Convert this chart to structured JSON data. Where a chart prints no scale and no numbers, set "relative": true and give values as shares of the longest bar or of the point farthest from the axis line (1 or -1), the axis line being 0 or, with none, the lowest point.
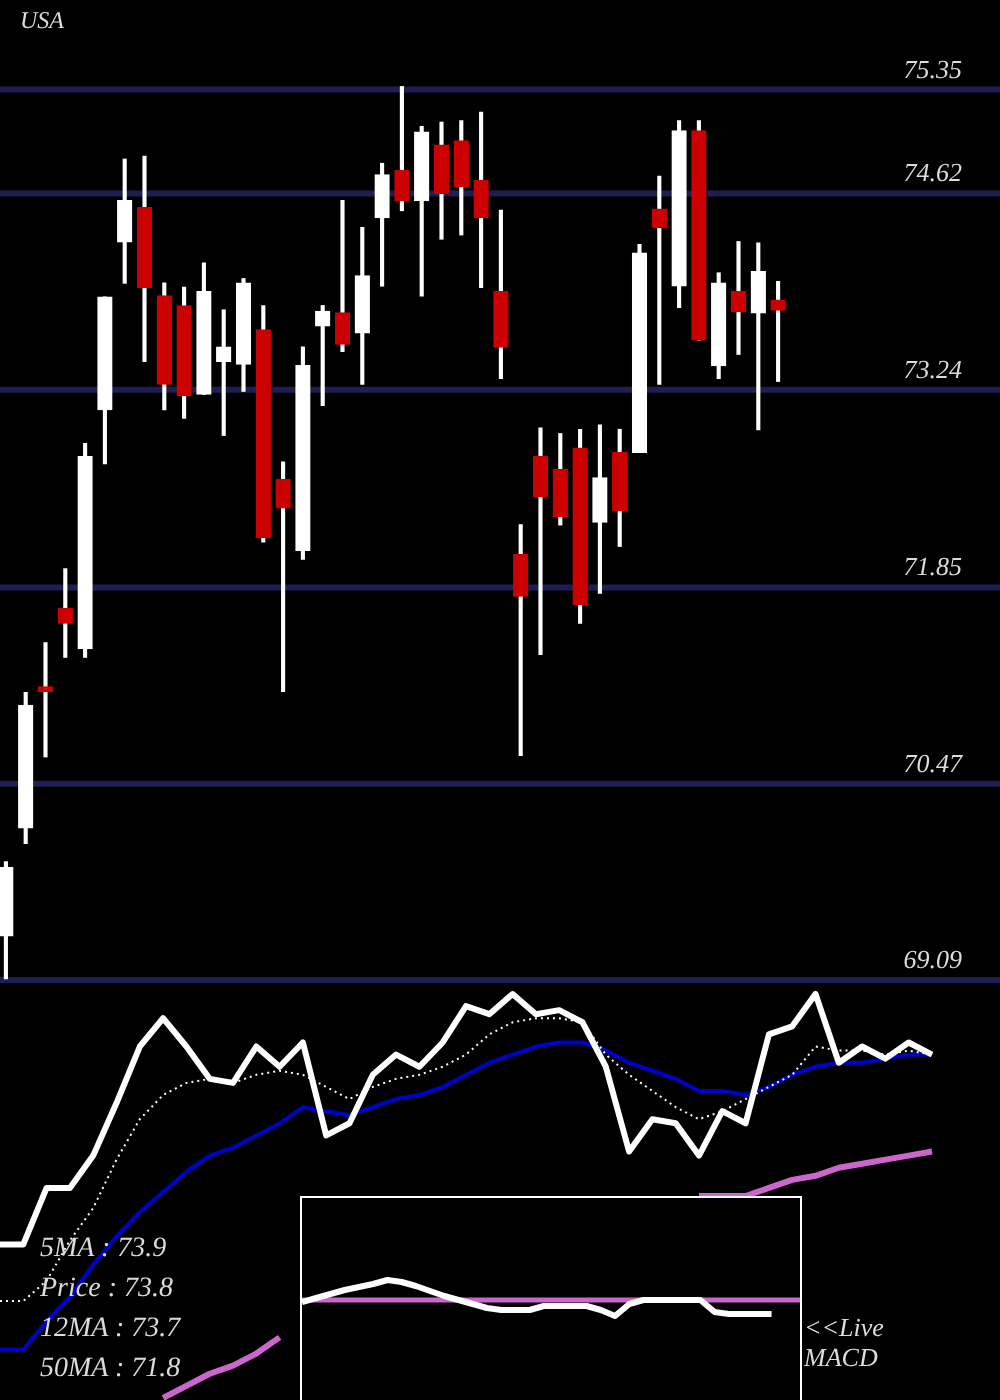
{
  "chart_data": [
    {
      "type": "candlestick",
      "title": "USA",
      "categories": [
        null,
        null,
        null,
        null,
        null,
        null,
        null,
        null,
        null,
        null,
        null,
        null,
        null,
        null,
        null,
        null,
        null,
        null,
        null,
        null,
        null,
        null,
        null,
        null,
        null,
        null,
        null,
        null,
        null,
        null,
        null,
        null,
        null,
        null,
        null,
        null,
        null,
        null,
        null,
        null
      ],
      "ohlc": [
        [
          69.4,
          69.92,
          69.1,
          69.88
        ],
        [
          70.16,
          71.11,
          70.05,
          71.02
        ],
        [
          71.15,
          71.46,
          70.66,
          71.12
        ],
        [
          71.7,
          71.98,
          71.36,
          71.6
        ],
        [
          71.42,
          72.86,
          71.36,
          72.77
        ],
        [
          73.1,
          73.89,
          72.72,
          73.89
        ],
        [
          74.28,
          74.86,
          73.99,
          74.57
        ],
        [
          74.52,
          74.88,
          73.44,
          73.96
        ],
        [
          73.9,
          73.99,
          73.1,
          73.28
        ],
        [
          73.83,
          73.96,
          73.04,
          73.2
        ],
        [
          73.21,
          74.13,
          73.21,
          73.93
        ],
        [
          73.44,
          73.8,
          72.92,
          73.54
        ],
        [
          73.42,
          74.02,
          73.23,
          73.99
        ],
        [
          73.66,
          73.83,
          72.17,
          72.2
        ],
        [
          72.61,
          72.73,
          71.12,
          72.41
        ],
        [
          72.11,
          73.54,
          72.05,
          73.41
        ],
        [
          73.69,
          73.83,
          73.13,
          73.79
        ],
        [
          73.78,
          74.57,
          73.51,
          73.56
        ],
        [
          73.64,
          74.38,
          73.28,
          74.04
        ],
        [
          74.45,
          74.83,
          73.97,
          74.75
        ],
        [
          74.78,
          75.37,
          74.5,
          74.57
        ],
        [
          74.57,
          75.09,
          73.9,
          75.05
        ],
        [
          74.96,
          75.12,
          74.3,
          74.62
        ],
        [
          74.99,
          75.13,
          74.33,
          74.67
        ],
        [
          74.71,
          75.19,
          73.96,
          74.45
        ],
        [
          73.93,
          74.5,
          73.32,
          73.54
        ],
        [
          72.08,
          72.29,
          70.67,
          71.79
        ],
        [
          72.77,
          72.97,
          71.38,
          72.49
        ],
        [
          72.68,
          72.93,
          72.29,
          72.35
        ],
        [
          72.83,
          72.96,
          71.6,
          71.73
        ],
        [
          72.31,
          72.99,
          71.81,
          72.62
        ],
        [
          72.8,
          72.96,
          72.14,
          72.39
        ],
        [
          72.8,
          74.26,
          72.8,
          74.2
        ],
        [
          74.51,
          74.74,
          73.28,
          74.38
        ],
        [
          73.97,
          75.13,
          73.82,
          75.06
        ],
        [
          75.06,
          75.13,
          73.59,
          73.59
        ],
        [
          73.41,
          74.06,
          73.32,
          73.99
        ],
        [
          73.93,
          74.28,
          73.49,
          73.79
        ],
        [
          73.78,
          74.27,
          72.96,
          74.07
        ],
        [
          73.87,
          74.0,
          73.3,
          73.8
        ]
      ],
      "colors": [
        "#ffffff",
        "#ffffff",
        "#cc0000",
        "#cc0000",
        "#ffffff",
        "#ffffff",
        "#ffffff",
        "#cc0000",
        "#cc0000",
        "#cc0000",
        "#ffffff",
        "#ffffff",
        "#ffffff",
        "#cc0000",
        "#cc0000",
        "#ffffff",
        "#ffffff",
        "#cc0000",
        "#ffffff",
        "#ffffff",
        "#cc0000",
        "#ffffff",
        "#cc0000",
        "#cc0000",
        "#cc0000",
        "#cc0000",
        "#cc0000",
        "#cc0000",
        "#cc0000",
        "#cc0000",
        "#ffffff",
        "#cc0000",
        "#ffffff",
        "#cc0000",
        "#ffffff",
        "#cc0000",
        "#ffffff",
        "#cc0000",
        "#ffffff",
        "#cc0000"
      ],
      "ylim": [
        69.09,
        75.98
      ],
      "yticks": [
        69.09,
        70.47,
        71.85,
        73.24,
        74.62,
        75.35
      ],
      "grid": true
    },
    {
      "type": "line",
      "relative": true,
      "categories": [
        null,
        null,
        null,
        null,
        null,
        null,
        null,
        null,
        null,
        null,
        null,
        null,
        null,
        null,
        null,
        null,
        null,
        null,
        null,
        null,
        null,
        null,
        null,
        null,
        null,
        null,
        null,
        null,
        null,
        null,
        null,
        null,
        null,
        null,
        null,
        null,
        null,
        null,
        null,
        null,
        null
      ],
      "series": [
        {
          "color": "#ffffff",
          "values": [
            0.38,
            0.38,
            0.52,
            0.52,
            0.6,
            0.73,
            0.87,
            0.94,
            0.87,
            0.79,
            0.78,
            0.87,
            0.82,
            0.88,
            0.65,
            0.68,
            0.8,
            0.85,
            0.82,
            0.88,
            0.97,
            0.95,
            1.0,
            0.95,
            0.96,
            0.93,
            0.82,
            0.61,
            0.69,
            0.68,
            0.6,
            0.71,
            0.68,
            0.9,
            0.92,
            1.0,
            0.83,
            0.87,
            0.84,
            0.88,
            0.85
          ]
        },
        {
          "color": "#ffffff",
          "line_style": "dotted",
          "values": [
            0.24,
            0.24,
            0.29,
            0.39,
            0.47,
            0.59,
            0.69,
            0.75,
            0.78,
            0.79,
            0.78,
            0.8,
            0.81,
            0.8,
            0.77,
            0.74,
            0.77,
            0.79,
            0.8,
            0.82,
            0.85,
            0.9,
            0.93,
            0.94,
            0.94,
            0.93,
            0.85,
            0.8,
            0.76,
            0.72,
            0.69,
            0.71,
            0.74,
            0.77,
            0.8,
            0.87,
            0.86,
            0.86,
            0.85,
            0.86,
            0.85
          ]
        },
        {
          "color": "#0000cc",
          "values": [
            0.12,
            0.12,
            0.19,
            0.25,
            0.33,
            0.4,
            0.46,
            0.51,
            0.56,
            0.6,
            0.62,
            0.65,
            0.68,
            0.72,
            0.71,
            0.7,
            0.72,
            0.74,
            0.75,
            0.77,
            0.8,
            0.83,
            0.85,
            0.87,
            0.88,
            0.88,
            0.86,
            0.83,
            0.81,
            0.79,
            0.76,
            0.76,
            0.75,
            0.77,
            0.8,
            0.82,
            0.83,
            0.83,
            0.84,
            0.85,
            0.85
          ]
        },
        {
          "color": "#cc66cc",
          "values": [
            null,
            null,
            null,
            null,
            null,
            null,
            null,
            0,
            0.03,
            0.06,
            0.08,
            0.11,
            0.15,
            null,
            null,
            null,
            null,
            null,
            null,
            null,
            null,
            null,
            null,
            null,
            null,
            null,
            null,
            null,
            null,
            null,
            0.5,
            0.5,
            0.5,
            0.52,
            0.54,
            0.55,
            0.57,
            0.58,
            0.59,
            0.6,
            0.61
          ]
        }
      ],
      "annotations": [
        "5MA : 73.9",
        "Price : 73.8",
        "12MA : 73.7",
        "50MA : 71.8"
      ]
    },
    {
      "type": "line",
      "relative": true,
      "categories": [
        null,
        null,
        null,
        null,
        null,
        null,
        null,
        null,
        null,
        null,
        null,
        null,
        null,
        null,
        null,
        null,
        null,
        null,
        null,
        null,
        null,
        null,
        null,
        null,
        null,
        null,
        null,
        null,
        null,
        null,
        null,
        null,
        null,
        null,
        null,
        null
      ],
      "series": [
        {
          "color": "#ffffff",
          "values": [
            -0.1,
            0.1,
            0.3,
            0.5,
            0.65,
            0.8,
            1.0,
            0.9,
            0.7,
            0.45,
            0.2,
            0,
            -0.2,
            -0.4,
            -0.5,
            -0.5,
            -0.5,
            -0.3,
            -0.3,
            -0.3,
            -0.3,
            -0.5,
            -0.8,
            -0.2,
            0,
            0,
            0,
            0,
            0,
            -0.6,
            -0.7,
            -0.7,
            -0.7,
            -0.7,
            null,
            null
          ]
        }
      ],
      "ref_lines": [
        {
          "axis": "y",
          "value": 0,
          "color": "#cc66cc"
        }
      ],
      "annotations": [
        "<<Live MACD"
      ]
    }
  ]
}
